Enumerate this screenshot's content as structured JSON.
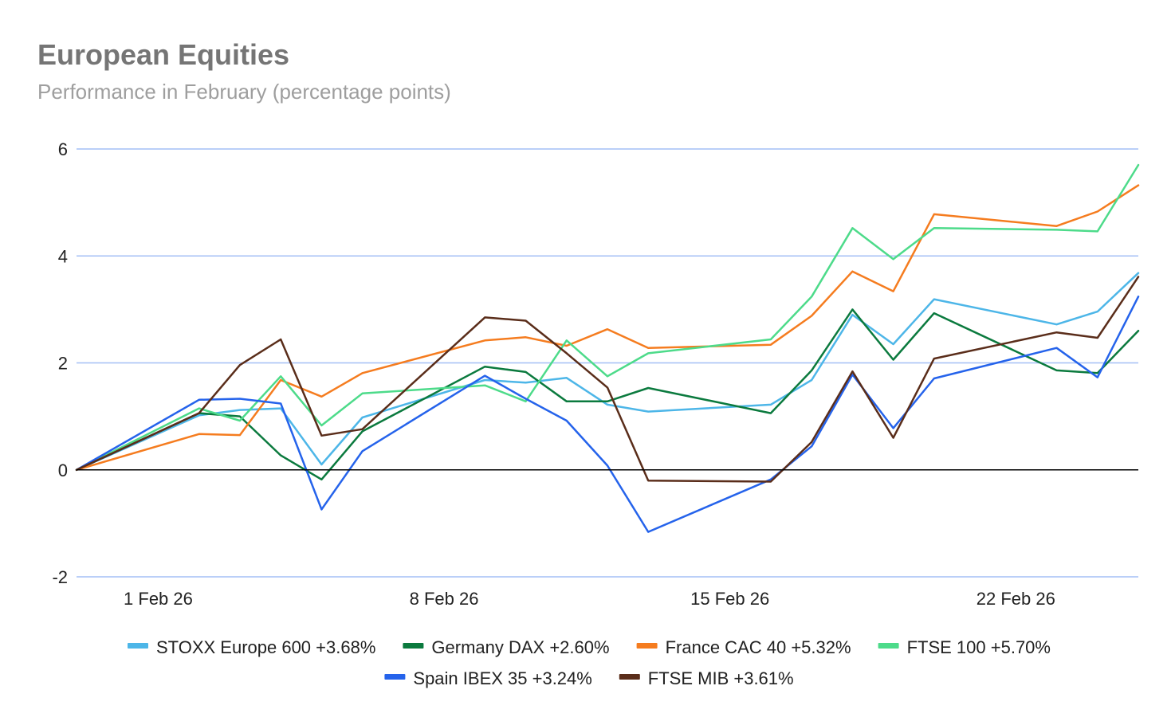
{
  "chart_data": {
    "type": "line",
    "title": "European Equities",
    "subtitle": "Performance in February (percentage points)",
    "xlabel": "",
    "ylabel": "",
    "ylim": [
      -2,
      6
    ],
    "yticks": [
      "-2",
      "0",
      "2",
      "4",
      "6"
    ],
    "xtick_labels": [
      "1 Feb 26",
      "8 Feb 26",
      "15 Feb 26",
      "22 Feb 26"
    ],
    "xtick_days": [
      2,
      9,
      16,
      23
    ],
    "grid": true,
    "legend_position": "bottom",
    "x_days": [
      0,
      3,
      4,
      5,
      6,
      7,
      10,
      11,
      12,
      13,
      14,
      17,
      18,
      19,
      20,
      21,
      24,
      25,
      26
    ],
    "series": [
      {
        "name": "STOXX Europe 600",
        "label": "STOXX Europe 600 +3.68%",
        "color": "#4db6e8",
        "values": [
          0,
          1.02,
          1.12,
          1.15,
          0.1,
          0.98,
          1.68,
          1.63,
          1.72,
          1.22,
          1.09,
          1.22,
          1.68,
          2.9,
          2.35,
          3.19,
          2.72,
          2.96,
          3.68
        ]
      },
      {
        "name": "Germany DAX",
        "label": "Germany DAX +2.60%",
        "color": "#0b7a3e",
        "values": [
          0,
          1.06,
          1.0,
          0.27,
          -0.18,
          0.72,
          1.93,
          1.83,
          1.28,
          1.28,
          1.53,
          1.06,
          1.86,
          3.0,
          2.06,
          2.93,
          1.86,
          1.81,
          2.6
        ]
      },
      {
        "name": "France CAC 40",
        "label": "France CAC 40 +5.32%",
        "color": "#f57c1f",
        "values": [
          0,
          0.67,
          0.65,
          1.68,
          1.37,
          1.81,
          2.42,
          2.48,
          2.32,
          2.63,
          2.28,
          2.34,
          2.88,
          3.71,
          3.34,
          4.78,
          4.56,
          4.83,
          5.32
        ]
      },
      {
        "name": "FTSE 100",
        "label": "FTSE 100 +5.70%",
        "color": "#4ddb8a",
        "values": [
          0,
          1.15,
          0.92,
          1.75,
          0.83,
          1.43,
          1.58,
          1.28,
          2.42,
          1.75,
          2.18,
          2.44,
          3.24,
          4.52,
          3.94,
          4.52,
          4.49,
          4.46,
          5.7
        ]
      },
      {
        "name": "Spain IBEX 35",
        "label": "Spain IBEX 35 +3.24%",
        "color": "#2563eb",
        "values": [
          0,
          1.31,
          1.33,
          1.24,
          -0.74,
          0.35,
          1.76,
          1.33,
          0.92,
          0.08,
          -1.16,
          -0.18,
          0.44,
          1.78,
          0.78,
          1.71,
          2.28,
          1.73,
          3.24
        ]
      },
      {
        "name": "FTSE MIB",
        "label": "FTSE MIB +3.61%",
        "color": "#5a2d1a",
        "values": [
          0,
          1.06,
          1.96,
          2.44,
          0.64,
          0.76,
          2.85,
          2.79,
          2.18,
          1.54,
          -0.2,
          -0.22,
          0.52,
          1.84,
          0.6,
          2.08,
          2.57,
          2.47,
          3.61
        ]
      }
    ]
  }
}
